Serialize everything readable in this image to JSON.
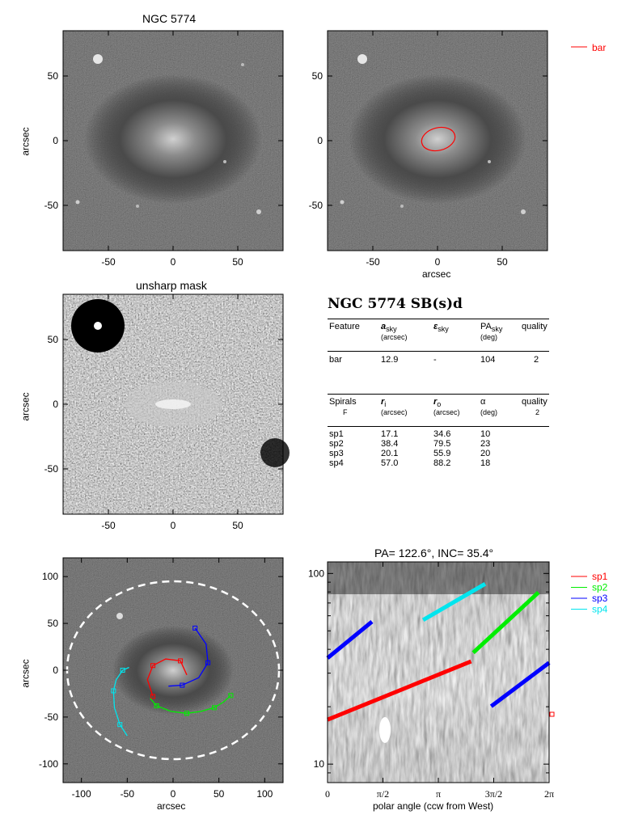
{
  "panels": {
    "image": {
      "title": "NGC 5774",
      "ylabel": "arcsec"
    },
    "bar_overlay": {
      "xlabel": "arcsec"
    },
    "unsharp": {
      "title": "unsharp mask",
      "ylabel": "arcsec"
    },
    "spiral_overlay": {
      "xlabel": "arcsec",
      "ylabel": "arcsec"
    },
    "polar": {
      "title": "PA= 122.6°, INC=  35.4°",
      "xlabel": "polar angle (ccw from West)"
    }
  },
  "table": {
    "title": "NGC 5774  SB(s)d",
    "bar_header": {
      "c1": "Feature",
      "c2": "a",
      "c2_sub": "sky",
      "c2_unit": "(arcsec)",
      "c3": "ε",
      "c3_sub": "sky",
      "c4": "PA",
      "c4_sub": "sky",
      "c4_unit": "(deg)",
      "c5": "quality"
    },
    "bar_row": {
      "name": "bar",
      "a": "12.9",
      "eps": "-",
      "pa": "104",
      "quality": "2"
    },
    "spiral_header": {
      "c1": "Spirals",
      "c1_sub": "F",
      "c2": "r",
      "c2_sub": "i",
      "c2_unit": "(arcsec)",
      "c3": "r",
      "c3_sub": "o",
      "c3_unit": "(arcsec)",
      "c4": "α",
      "c4_unit": "(deg)",
      "c5": "quality",
      "c5_sub": "2"
    },
    "spiral_rows": [
      {
        "name": "sp1",
        "ri": "17.1",
        "ro": "34.6",
        "alpha": "10"
      },
      {
        "name": "sp2",
        "ri": "38.4",
        "ro": "79.5",
        "alpha": "23"
      },
      {
        "name": "sp3",
        "ri": "20.1",
        "ro": "55.9",
        "alpha": "20"
      },
      {
        "name": "sp4",
        "ri": "57.0",
        "ro": "88.2",
        "alpha": "18"
      }
    ]
  },
  "legend_bar": {
    "label": "bar",
    "color": "#ff0000"
  },
  "legend_spirals": [
    {
      "label": "sp1",
      "color": "#ff0000"
    },
    {
      "label": "sp2",
      "color": "#00ee00"
    },
    {
      "label": "sp3",
      "color": "#0000ff"
    },
    {
      "label": "sp4",
      "color": "#00e5ee"
    }
  ],
  "chart_data": [
    {
      "type": "image",
      "title": "NGC 5774",
      "ylabel": "arcsec",
      "xlim": [
        -85,
        85
      ],
      "ylim": [
        -85,
        85
      ],
      "xticks": [
        -50,
        0,
        50
      ],
      "yticks": [
        -50,
        0,
        50
      ]
    },
    {
      "type": "image",
      "xlabel": "arcsec",
      "xlim": [
        -85,
        85
      ],
      "ylim": [
        -85,
        85
      ],
      "xticks": [
        -50,
        0,
        50
      ],
      "yticks": [
        -50,
        0,
        50
      ],
      "overlay": {
        "bar_ellipse": {
          "semi_major_arcsec": 12.9,
          "pa_deg": 104,
          "color": "#ff0000"
        }
      }
    },
    {
      "type": "image",
      "title": "unsharp mask",
      "ylabel": "arcsec",
      "xlim": [
        -85,
        85
      ],
      "ylim": [
        -85,
        85
      ],
      "xticks": [
        -50,
        0,
        50
      ],
      "yticks": [
        -50,
        0,
        50
      ]
    },
    {
      "type": "image",
      "xlabel": "arcsec",
      "ylabel": "arcsec",
      "xlim": [
        -120,
        120
      ],
      "ylim": [
        -120,
        120
      ],
      "xticks": [
        -100,
        -50,
        0,
        50,
        100
      ],
      "yticks": [
        -100,
        -50,
        0,
        50,
        100
      ],
      "disk_ellipse": {
        "center": [
          0,
          0
        ],
        "semi_axes": [
          105,
          85
        ],
        "style": "dashed",
        "color": "#ffffff"
      },
      "series": [
        {
          "name": "sp1",
          "color": "#ff0000",
          "points": [
            [
              15,
              -5
            ],
            [
              8,
              10
            ],
            [
              -8,
              12
            ],
            [
              -22,
              5
            ],
            [
              -28,
              -10
            ],
            [
              -22,
              -28
            ]
          ]
        },
        {
          "name": "sp2",
          "color": "#00ee00",
          "points": [
            [
              -25,
              -30
            ],
            [
              -18,
              -38
            ],
            [
              -2,
              -44
            ],
            [
              15,
              -46
            ],
            [
              30,
              -44
            ],
            [
              45,
              -40
            ],
            [
              55,
              -34
            ],
            [
              63,
              -27
            ]
          ]
        },
        {
          "name": "sp3",
          "color": "#0000ff",
          "points": [
            [
              -5,
              -17
            ],
            [
              10,
              -16
            ],
            [
              28,
              -8
            ],
            [
              38,
              8
            ],
            [
              36,
              28
            ],
            [
              24,
              45
            ]
          ]
        },
        {
          "name": "sp4",
          "color": "#00e5ee",
          "points": [
            [
              -50,
              -70
            ],
            [
              -58,
              -58
            ],
            [
              -64,
              -40
            ],
            [
              -65,
              -22
            ],
            [
              -62,
              -10
            ],
            [
              -55,
              0
            ],
            [
              -48,
              3
            ]
          ]
        }
      ]
    },
    {
      "type": "image",
      "title": "PA= 122.6°, INC=  35.4°",
      "xlabel": "polar angle (ccw from West)",
      "xlim": [
        0,
        6.2832
      ],
      "ylim": [
        8,
        115
      ],
      "yscale": "log",
      "xticks": [
        "0",
        "π/2",
        "π",
        "3π/2",
        "2π"
      ],
      "yticks": [
        "10",
        "100"
      ],
      "series": [
        {
          "name": "sp1",
          "color": "#ff0000",
          "x": [
            0.0,
            4.07
          ],
          "y": [
            17.1,
            34.6
          ]
        },
        {
          "name": "sp2",
          "color": "#00ee00",
          "x": [
            4.13,
            5.98
          ],
          "y": [
            38.4,
            79.5
          ]
        },
        {
          "name": "sp3a",
          "color": "#0000ff",
          "x": [
            0.0,
            1.26
          ],
          "y": [
            36.0,
            55.9
          ]
        },
        {
          "name": "sp3b",
          "color": "#0000ff",
          "x": [
            4.64,
            6.2832
          ],
          "y": [
            20.1,
            34.0
          ]
        },
        {
          "name": "sp4",
          "color": "#00e5ee",
          "x": [
            2.71,
            4.47
          ],
          "y": [
            57.0,
            88.2
          ]
        }
      ]
    }
  ]
}
